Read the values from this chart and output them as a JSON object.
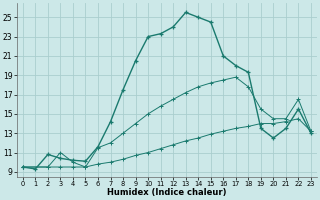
{
  "xlabel": "Humidex (Indice chaleur)",
  "bg_color": "#cce8e8",
  "grid_color": "#aacece",
  "line_color": "#1a7a6e",
  "xlim": [
    -0.5,
    23.5
  ],
  "ylim": [
    8.5,
    26.5
  ],
  "xticks": [
    0,
    1,
    2,
    3,
    4,
    5,
    6,
    7,
    8,
    9,
    10,
    11,
    12,
    13,
    14,
    15,
    16,
    17,
    18,
    19,
    20,
    21,
    22,
    23
  ],
  "yticks": [
    9,
    11,
    13,
    15,
    17,
    19,
    21,
    23,
    25
  ],
  "line1_x": [
    0,
    1,
    2,
    3,
    4,
    5,
    6,
    7,
    8,
    9,
    10,
    11,
    12,
    13,
    14,
    15,
    16,
    17,
    18,
    19,
    20,
    21,
    22,
    23
  ],
  "line1_y": [
    9.5,
    9.3,
    10.8,
    10.4,
    10.2,
    10.1,
    11.6,
    14.2,
    17.5,
    20.5,
    23.0,
    23.3,
    24.0,
    25.5,
    25.0,
    24.5,
    21.0,
    20.0,
    19.3,
    13.5,
    12.5,
    13.5,
    15.5,
    13.0
  ],
  "line2_x": [
    0,
    2,
    3,
    4,
    5,
    6,
    7,
    8,
    9,
    10,
    11,
    12,
    13,
    14,
    15,
    16,
    17,
    18,
    19,
    20,
    21,
    22,
    23
  ],
  "line2_y": [
    9.5,
    9.5,
    9.5,
    9.5,
    9.5,
    9.8,
    10.0,
    10.3,
    10.7,
    11.0,
    11.4,
    11.8,
    12.2,
    12.5,
    12.9,
    13.2,
    13.5,
    13.7,
    14.0,
    14.0,
    14.2,
    14.5,
    13.2
  ],
  "line3_x": [
    0,
    2,
    3,
    4,
    5,
    6,
    7,
    8,
    9,
    10,
    11,
    12,
    13,
    14,
    15,
    16,
    17,
    18,
    19,
    20,
    21,
    22,
    23
  ],
  "line3_y": [
    9.5,
    9.5,
    11.0,
    10.0,
    9.5,
    11.5,
    12.0,
    13.0,
    14.0,
    15.0,
    15.8,
    16.5,
    17.2,
    17.8,
    18.2,
    18.5,
    18.8,
    17.8,
    15.5,
    14.5,
    14.5,
    16.5,
    13.2
  ]
}
